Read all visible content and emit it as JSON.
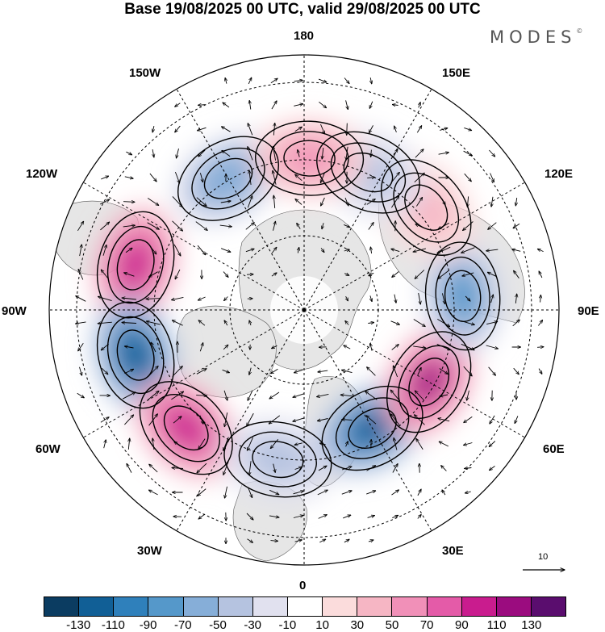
{
  "header": {
    "title": "Base 19/08/2025 00 UTC, valid 29/08/2025 00 UTC",
    "brand": "MODES",
    "brand_mark": "©"
  },
  "map": {
    "projection": "north polar stereographic",
    "longitude_labels": {
      "top": "180",
      "bottom": "0",
      "left": "90W",
      "right": "90E",
      "upper_left_1": "150W",
      "upper_left_2": "120W",
      "lower_left_1": "60W",
      "lower_left_2": "30W",
      "upper_right_1": "150E",
      "upper_right_2": "120E",
      "lower_right_1": "60E",
      "lower_right_2": "30E"
    },
    "anomaly_centers": [
      {
        "lon": -150,
        "lat_ring": 2,
        "value": -70
      },
      {
        "lon": -105,
        "lat_ring": 2.3,
        "value": 100
      },
      {
        "lon": -75,
        "lat_ring": 2.3,
        "value": -120
      },
      {
        "lon": -45,
        "lat_ring": 2.2,
        "value": 100
      },
      {
        "lon": -10,
        "lat_ring": 2,
        "value": -50
      },
      {
        "lon": 30,
        "lat_ring": 1.8,
        "value": -120
      },
      {
        "lon": 60,
        "lat_ring": 1.9,
        "value": 110
      },
      {
        "lon": 95,
        "lat_ring": 2.1,
        "value": -80
      },
      {
        "lon": 130,
        "lat_ring": 2.1,
        "value": 40
      },
      {
        "lon": 155,
        "lat_ring": 2.0,
        "value": -50
      },
      {
        "lon": 178,
        "lat_ring": 2.0,
        "value": 60
      }
    ],
    "vector_reference": {
      "value": "10"
    }
  },
  "colorbar": {
    "colors": [
      "#0b3c61",
      "#115f96",
      "#2f80bb",
      "#5598ca",
      "#86aed8",
      "#b5c3e0",
      "#e1e1ef",
      "#ffffff",
      "#fbdcdc",
      "#f6b6c4",
      "#f190b8",
      "#e45ba8",
      "#c91c8e",
      "#9b0c7f",
      "#5a0d6e"
    ],
    "tick_labels": [
      "-130",
      "-110",
      "-90",
      "-70",
      "-50",
      "-30",
      "-10",
      "10",
      "30",
      "50",
      "70",
      "90",
      "110",
      "130"
    ]
  }
}
